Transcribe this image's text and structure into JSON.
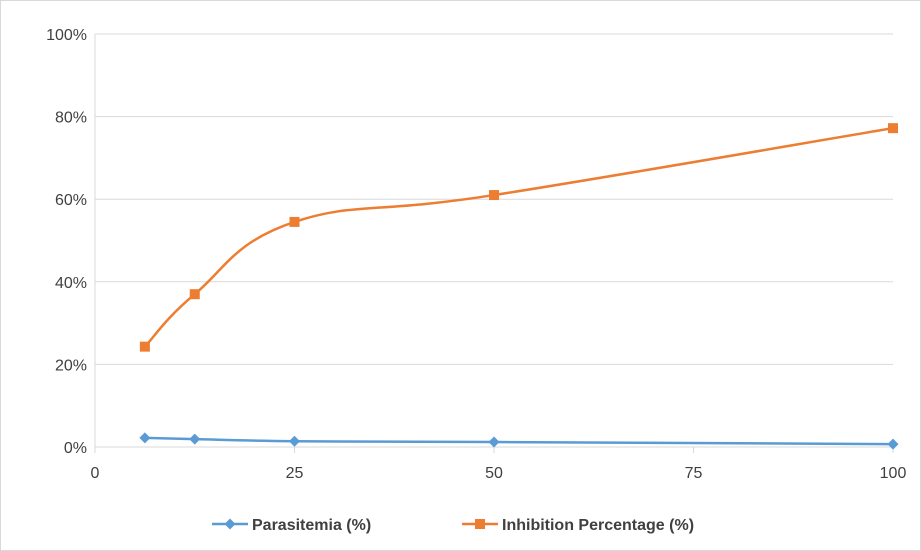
{
  "chart_data": {
    "type": "line",
    "title": "",
    "xlabel": "",
    "ylabel": "",
    "x": [
      6.25,
      12.5,
      25,
      50,
      100
    ],
    "series": [
      {
        "name": "Parasitemia (%)",
        "values": [
          0.022,
          0.019,
          0.014,
          0.012,
          0.007
        ],
        "color": "#5b9bd5",
        "marker": "diamond"
      },
      {
        "name": "Inhibition Percentage (%)",
        "values": [
          0.243,
          0.37,
          0.545,
          0.61,
          0.772
        ],
        "color": "#ed7d31",
        "marker": "square"
      }
    ],
    "xlim": [
      0,
      100
    ],
    "ylim": [
      0,
      1
    ],
    "x_ticks": [
      0,
      25,
      50,
      75,
      100
    ],
    "x_tick_labels": [
      "0",
      "25",
      "50",
      "75",
      "100"
    ],
    "y_ticks": [
      0,
      0.2,
      0.4,
      0.6,
      0.8,
      1.0
    ],
    "y_tick_labels": [
      "0%",
      "20%",
      "40%",
      "60%",
      "80%",
      "100%"
    ],
    "grid": "horizontal",
    "smoothed": true,
    "legend_position": "bottom",
    "gridline_color": "#d9d9d9"
  }
}
